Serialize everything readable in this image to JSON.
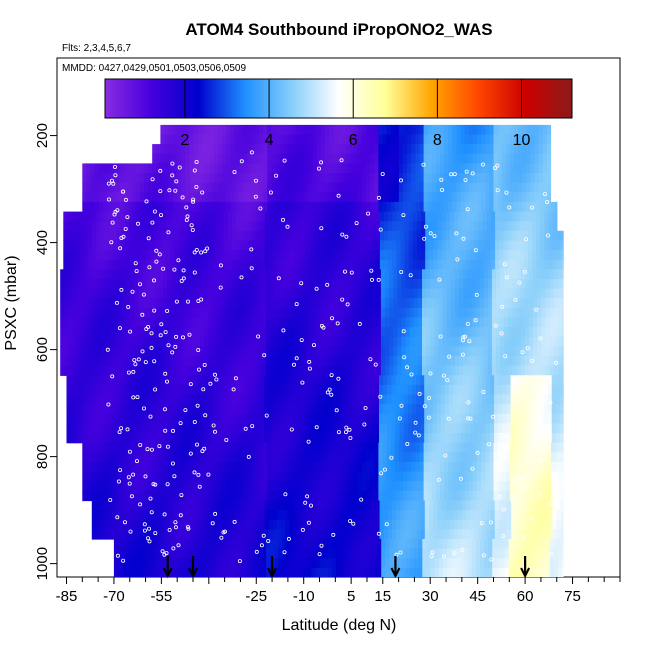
{
  "chart_data": {
    "type": "heatmap",
    "title": "ATOM4 Southbound iPropONO2_WAS",
    "flights_label": "Flts: 2,3,4,5,6,7",
    "dates_label": "MMDD: 0427,0429,0501,0503,0506,0509",
    "xlabel": "Latitude (deg N)",
    "ylabel": "PSXC (mbar)",
    "xlim": [
      -88,
      90
    ],
    "ylim": [
      1025,
      55
    ],
    "x_ticks": [
      -85,
      -70,
      -55,
      -40,
      -25,
      -10,
      5,
      15,
      30,
      45,
      60,
      75
    ],
    "x_tick_labels": [
      "-85",
      "-70",
      "-55",
      "",
      "-25",
      "-10",
      "5",
      "15",
      "30",
      "45",
      "60",
      "75"
    ],
    "x_minor_ticks": [
      -80,
      -75,
      -65,
      -60,
      -50,
      -45,
      -35,
      -30,
      -20,
      -15,
      -5,
      0,
      10,
      20,
      25,
      35,
      40,
      50,
      55,
      65,
      70,
      80,
      85,
      90
    ],
    "y_ticks": [
      200,
      400,
      600,
      800,
      1000
    ],
    "y_tick_labels": [
      "200",
      "400",
      "600",
      "800",
      "1000"
    ],
    "colorbar": {
      "range": [
        0.1,
        11.2
      ],
      "ticks": [
        2,
        4,
        6,
        8,
        10
      ],
      "tick_labels": [
        "2",
        "4",
        "6",
        "8",
        "10"
      ],
      "colors": [
        "#8a2be2",
        "#4400dd",
        "#0000cd",
        "#1e90ff",
        "#87cefa",
        "#ffffff",
        "#ffff99",
        "#ffa500",
        "#ff4500",
        "#cc0000",
        "#8b1a1a"
      ]
    },
    "profile_arrows_lat": [
      -53,
      -45,
      -20,
      19,
      60
    ],
    "field_regions": [
      {
        "lat_range": [
          -88,
          -22
        ],
        "value": 1.4
      },
      {
        "lat_range": [
          -22,
          14
        ],
        "value": 1.7
      },
      {
        "lat_range": [
          14,
          28
        ],
        "value": 3.0
      },
      {
        "lat_range": [
          28,
          75
        ],
        "value": 4.5
      }
    ],
    "sample_points_count": 420
  }
}
